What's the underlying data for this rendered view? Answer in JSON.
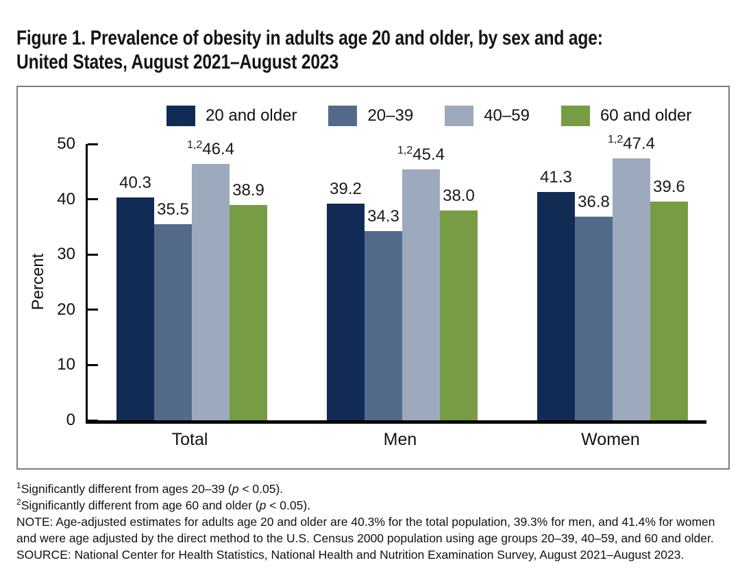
{
  "title": {
    "line1": "Figure 1. Prevalence of obesity in adults age 20 and older, by sex and age:",
    "line2": "United States, August 2021–August 2023"
  },
  "chart_data": {
    "type": "bar",
    "title": "Figure 1. Prevalence of obesity in adults age 20 and older, by sex and age: United States, August 2021–August 2023",
    "categories": [
      "Total",
      "Men",
      "Women"
    ],
    "series": [
      {
        "name": "20 and older",
        "color": "#122b54",
        "values": [
          40.3,
          39.2,
          41.3
        ],
        "labels": [
          "40.3",
          "39.2",
          "41.3"
        ],
        "label_sups": [
          "",
          "",
          ""
        ]
      },
      {
        "name": "20–39",
        "color": "#546a8b",
        "values": [
          35.5,
          34.3,
          36.8
        ],
        "labels": [
          "35.5",
          "34.3",
          "36.8"
        ],
        "label_sups": [
          "",
          "",
          ""
        ]
      },
      {
        "name": "40–59",
        "color": "#9daabd",
        "values": [
          46.4,
          45.4,
          47.4
        ],
        "labels": [
          "46.4",
          "45.4",
          "47.4"
        ],
        "label_sups": [
          "1,2",
          "1,2",
          "1,2"
        ]
      },
      {
        "name": "60 and older",
        "color": "#789c44",
        "values": [
          38.9,
          38.0,
          39.6
        ],
        "labels": [
          "38.9",
          "38.0",
          "39.6"
        ],
        "label_sups": [
          "",
          "",
          ""
        ]
      }
    ],
    "ylabel": "Percent",
    "ylim": [
      0,
      50
    ],
    "y_ticks": [
      0,
      10,
      20,
      30,
      40,
      50
    ],
    "legend_position": "top",
    "grid": false
  },
  "footnotes": [
    [
      {
        "sup": "1"
      },
      {
        "text": "Significantly different from ages 20–39 ("
      },
      {
        "text": "p",
        "italic": true
      },
      {
        "text": " < 0.05)."
      }
    ],
    [
      {
        "sup": "2"
      },
      {
        "text": "Significantly different from age 60 and older ("
      },
      {
        "text": "p",
        "italic": true
      },
      {
        "text": " < 0.05)."
      }
    ],
    [
      {
        "text": "NOTE: Age-adjusted estimates for adults age 20 and older are 40.3% for the total population, 39.3% for men, and 41.4% for women and were age adjusted by the direct method to the U.S. Census 2000 population using age groups 20–39, 40–59, and 60 and older."
      }
    ],
    [
      {
        "text": "SOURCE: National Center for Health Statistics, National Health and Nutrition Examination Survey, August 2021–August 2023."
      }
    ]
  ]
}
